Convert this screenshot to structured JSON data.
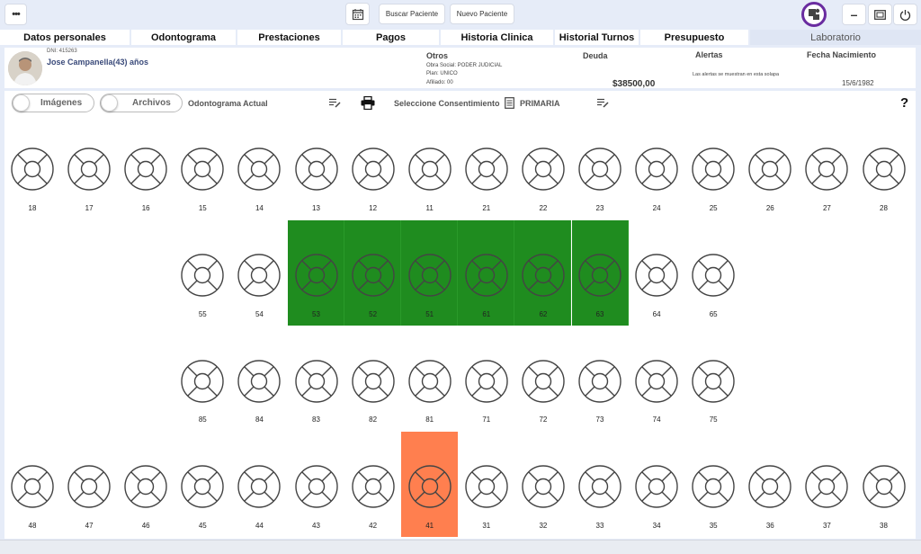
{
  "topbar": {
    "menu_label": "•••",
    "buscar_label": "Buscar Paciente",
    "nuevo_label": "Nuevo Paciente",
    "minimize_label": "–"
  },
  "tabs": [
    {
      "label": "Datos personales"
    },
    {
      "label": "Odontograma"
    },
    {
      "label": "Prestaciones"
    },
    {
      "label": "Pagos"
    },
    {
      "label": "Historia Clinica"
    },
    {
      "label": "Historial Turnos"
    },
    {
      "label": "Presupuesto"
    },
    {
      "label": "Laboratorio"
    }
  ],
  "patient": {
    "dni": "DNI: 415263",
    "name": "Jose Campanella(43) años",
    "otros_title": "Otros",
    "obra_social": "Obra Social: PODER JUDICIAL",
    "plan": "Plan: UNICO",
    "afiliado": "Afiliado: 00",
    "deuda_title": "Deuda",
    "deuda_value": "$38500,00",
    "alertas_title": "Alertas",
    "alertas_text": "Las alertas se muestran en esta solapa",
    "fecha_title": "Fecha Nacimiento",
    "fecha_value": "15/6/1982"
  },
  "toolbar": {
    "imagenes_label": "Imágenes",
    "archivos_label": "Archivos",
    "odontograma_label": "Odontograma Actual",
    "consentimiento_label": "Seleccione Consentimiento",
    "primaria_label": "PRIMARIA",
    "help_label": "?"
  },
  "odontogram": {
    "row1": [
      "18",
      "17",
      "16",
      "15",
      "14",
      "13",
      "12",
      "11",
      "21",
      "22",
      "23",
      "24",
      "25",
      "26",
      "27",
      "28"
    ],
    "row2": [
      "55",
      "54",
      "53",
      "52",
      "51",
      "61",
      "62",
      "63",
      "64",
      "65"
    ],
    "row3": [
      "85",
      "84",
      "83",
      "82",
      "81",
      "71",
      "72",
      "73",
      "74",
      "75"
    ],
    "row4": [
      "48",
      "47",
      "46",
      "45",
      "44",
      "43",
      "42",
      "41",
      "31",
      "32",
      "33",
      "34",
      "35",
      "36",
      "37",
      "38"
    ],
    "highlight_green": [
      "53",
      "52",
      "51",
      "61",
      "62",
      "63"
    ],
    "highlight_orange": [
      "41"
    ],
    "colors": {
      "green": "#1f8c1f",
      "orange": "#ff7f4f"
    }
  }
}
